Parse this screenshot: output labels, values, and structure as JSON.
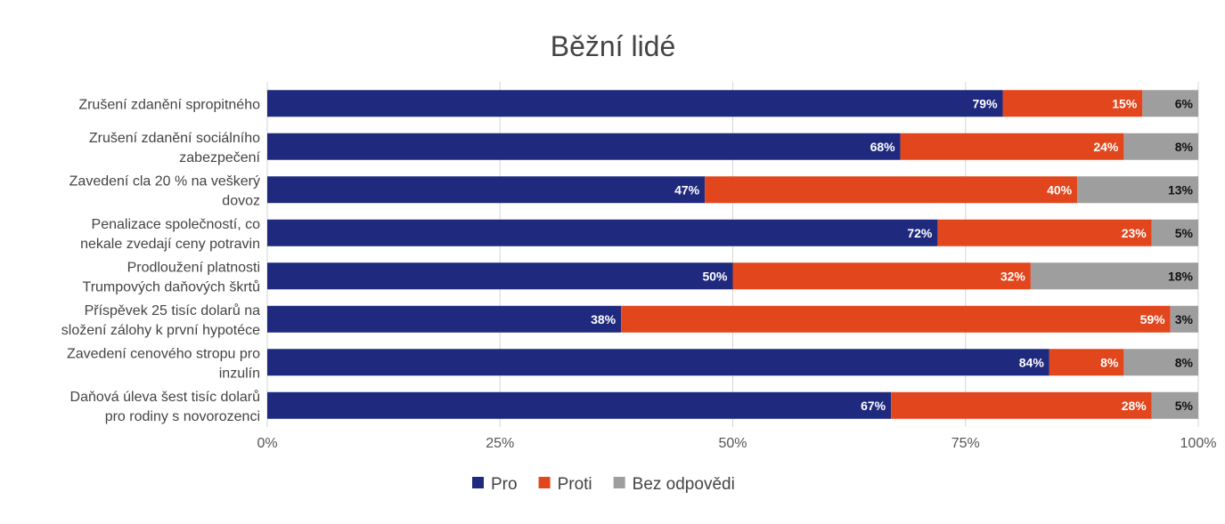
{
  "chart_data": {
    "type": "bar",
    "orientation": "horizontal",
    "stacked": true,
    "title": "Běžní lidé",
    "categories": [
      [
        "Zrušení zdanění spropitného"
      ],
      [
        "Zrušení zdanění sociálního",
        "zabezpečení"
      ],
      [
        "Zavedení cla 20 % na veškerý",
        "dovoz"
      ],
      [
        "Penalizace společností, co",
        "nekale zvedají ceny potravin"
      ],
      [
        "Prodloužení platnosti",
        "Trumpových daňových škrtů"
      ],
      [
        "Příspěvek 25 tisíc dolarů na",
        "složení zálohy k první hypotéce"
      ],
      [
        "Zavedení cenového stropu pro",
        "inzulín"
      ],
      [
        "Daňová úleva šest tisíc dolarů",
        "pro rodiny s novorozenci"
      ]
    ],
    "series": [
      {
        "name": "Pro",
        "color": "#1f2a7f",
        "values": [
          79,
          68,
          47,
          72,
          50,
          38,
          84,
          67
        ]
      },
      {
        "name": "Proti",
        "color": "#e2461d",
        "values": [
          15,
          24,
          40,
          23,
          32,
          59,
          8,
          28
        ]
      },
      {
        "name": "Bez odpovědi",
        "color": "#9e9e9e",
        "values": [
          6,
          8,
          13,
          5,
          18,
          3,
          8,
          5
        ]
      }
    ],
    "value_suffix": "%",
    "xlim": [
      0,
      100
    ],
    "x_ticks": [
      0,
      25,
      50,
      75,
      100
    ],
    "x_tick_labels": [
      "0%",
      "25%",
      "50%",
      "75%",
      "100%"
    ],
    "grid": true,
    "legend_position": "bottom"
  }
}
